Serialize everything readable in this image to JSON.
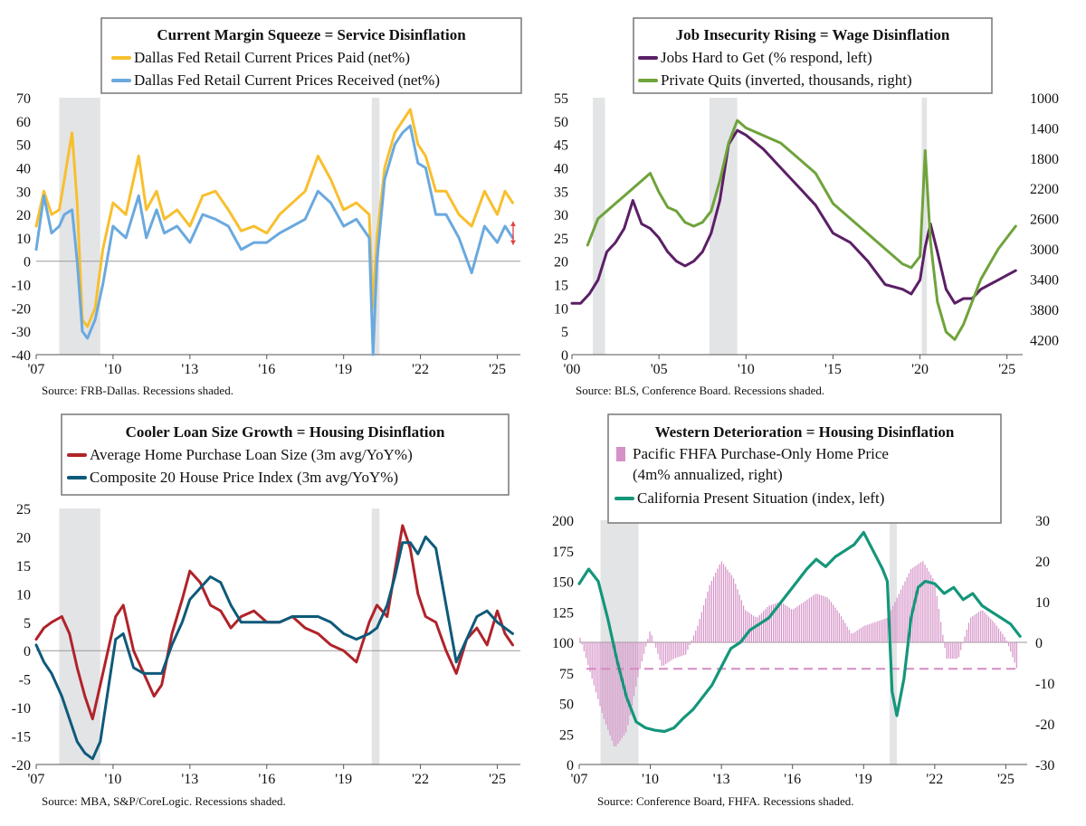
{
  "chart_data": [
    {
      "type": "line",
      "title": "Current Margin Squeeze = Service Disinflation",
      "legend_placement": "top-center",
      "source": "Source: FRB-Dallas. Recessions shaded.",
      "ylim": [
        -40,
        70
      ],
      "y_ticks": [
        "70",
        "60",
        "50",
        "40",
        "30",
        "20",
        "10",
        "0",
        "-10",
        "-20",
        "-30",
        "-40"
      ],
      "x_ticks": [
        "'07",
        "'10",
        "'13",
        "'16",
        "'19",
        "'22",
        "'25"
      ],
      "x_tick_years": [
        2007,
        2010,
        2013,
        2016,
        2019,
        2022,
        2025
      ],
      "xlim": [
        2007.0,
        2025.9
      ],
      "recessions": [
        [
          2007.9,
          2009.5
        ],
        [
          2020.1,
          2020.4
        ]
      ],
      "colors": {
        "paid": "#f8bf2e",
        "received": "#6aa9de",
        "arrow": "#e04040"
      },
      "series": [
        {
          "name": "Dallas Fed Retail Current Prices Paid (net%)",
          "color": "#f8bf2e",
          "x": [
            2007.0,
            2007.3,
            2007.6,
            2007.9,
            2008.1,
            2008.4,
            2008.6,
            2008.8,
            2009.0,
            2009.3,
            2009.6,
            2010.0,
            2010.5,
            2011.0,
            2011.3,
            2011.7,
            2012.0,
            2012.5,
            2013.0,
            2013.5,
            2014.0,
            2014.5,
            2015.0,
            2015.5,
            2016.0,
            2016.5,
            2017.0,
            2017.5,
            2018.0,
            2018.5,
            2019.0,
            2019.5,
            2020.0,
            2020.15,
            2020.3,
            2020.6,
            2021.0,
            2021.3,
            2021.6,
            2021.9,
            2022.2,
            2022.6,
            2023.0,
            2023.5,
            2024.0,
            2024.5,
            2025.0,
            2025.3,
            2025.6
          ],
          "values": [
            15,
            30,
            20,
            22,
            35,
            55,
            25,
            -25,
            -28,
            -20,
            5,
            25,
            20,
            45,
            22,
            30,
            18,
            22,
            15,
            28,
            30,
            22,
            13,
            15,
            12,
            20,
            25,
            30,
            45,
            35,
            22,
            25,
            20,
            -20,
            10,
            40,
            55,
            60,
            65,
            50,
            45,
            30,
            30,
            20,
            15,
            30,
            20,
            30,
            25
          ]
        },
        {
          "name": "Dallas Fed Retail Current Prices Received (net%)",
          "color": "#6aa9de",
          "x": [
            2007.0,
            2007.3,
            2007.6,
            2007.9,
            2008.1,
            2008.4,
            2008.6,
            2008.8,
            2009.0,
            2009.3,
            2009.6,
            2010.0,
            2010.5,
            2011.0,
            2011.3,
            2011.7,
            2012.0,
            2012.5,
            2013.0,
            2013.5,
            2014.0,
            2014.5,
            2015.0,
            2015.5,
            2016.0,
            2016.5,
            2017.0,
            2017.5,
            2018.0,
            2018.5,
            2019.0,
            2019.5,
            2020.0,
            2020.15,
            2020.3,
            2020.6,
            2021.0,
            2021.3,
            2021.6,
            2021.9,
            2022.2,
            2022.6,
            2023.0,
            2023.5,
            2024.0,
            2024.5,
            2025.0,
            2025.3,
            2025.6
          ],
          "values": [
            5,
            28,
            12,
            15,
            20,
            22,
            0,
            -30,
            -33,
            -25,
            -10,
            15,
            10,
            28,
            10,
            22,
            12,
            15,
            8,
            20,
            18,
            15,
            5,
            8,
            8,
            12,
            15,
            18,
            30,
            25,
            15,
            18,
            10,
            -40,
            0,
            35,
            50,
            55,
            58,
            42,
            40,
            20,
            20,
            10,
            -5,
            15,
            8,
            15,
            10
          ]
        }
      ]
    },
    {
      "type": "line",
      "title": "Job Insecurity Rising = Wage Disinflation",
      "legend_placement": "top-center",
      "source": "Source: BLS, Conference Board. Recessions shaded.",
      "ylim": [
        0,
        55
      ],
      "y2lim": [
        4400,
        1000
      ],
      "y_ticks": [
        "55",
        "50",
        "45",
        "40",
        "35",
        "30",
        "25",
        "20",
        "15",
        "10",
        "5",
        "0"
      ],
      "y2_ticks": [
        "1000",
        "1400",
        "1800",
        "2200",
        "2600",
        "3000",
        "3400",
        "3800",
        "4200"
      ],
      "x_ticks": [
        "'00",
        "'05",
        "'10",
        "'15",
        "'20",
        "'25"
      ],
      "x_tick_years": [
        2000,
        2005,
        2010,
        2015,
        2020,
        2025
      ],
      "xlim": [
        2000.0,
        2025.9
      ],
      "recessions": [
        [
          2001.2,
          2001.9
        ],
        [
          2007.9,
          2009.5
        ],
        [
          2020.1,
          2020.4
        ]
      ],
      "colors": {
        "jobs": "#5b1f66",
        "quits": "#6fa33b"
      },
      "series": [
        {
          "name": "Jobs Hard to Get (% respond, left)",
          "color": "#5b1f66",
          "x": [
            2000.0,
            2000.5,
            2001.0,
            2001.5,
            2002.0,
            2002.5,
            2003.0,
            2003.5,
            2004.0,
            2004.5,
            2005.0,
            2005.5,
            2006.0,
            2006.5,
            2007.0,
            2007.5,
            2008.0,
            2008.5,
            2009.0,
            2009.5,
            2010.0,
            2011.0,
            2012.0,
            2013.0,
            2014.0,
            2015.0,
            2016.0,
            2017.0,
            2018.0,
            2019.0,
            2019.5,
            2020.0,
            2020.3,
            2020.6,
            2021.0,
            2021.5,
            2022.0,
            2022.5,
            2023.0,
            2023.5,
            2024.0,
            2024.5,
            2025.0,
            2025.5
          ],
          "values": [
            11,
            11,
            13,
            16,
            22,
            24,
            27,
            33,
            28,
            27,
            25,
            22,
            20,
            19,
            20,
            22,
            26,
            33,
            45,
            48,
            47,
            44,
            40,
            36,
            32,
            26,
            24,
            20,
            15,
            14,
            13,
            16,
            23,
            28,
            22,
            14,
            11,
            12,
            12,
            14,
            15,
            16,
            17,
            18
          ]
        },
        {
          "name": "Private Quits (inverted, thousands, right)",
          "color": "#6fa33b",
          "x": [
            2000.9,
            2001.5,
            2002.0,
            2002.5,
            2003.0,
            2003.5,
            2004.0,
            2004.5,
            2005.0,
            2005.5,
            2006.0,
            2006.5,
            2007.0,
            2007.5,
            2008.0,
            2008.5,
            2009.0,
            2009.5,
            2010.0,
            2011.0,
            2012.0,
            2013.0,
            2014.0,
            2015.0,
            2016.0,
            2017.0,
            2018.0,
            2019.0,
            2019.5,
            2020.0,
            2020.3,
            2020.6,
            2021.0,
            2021.5,
            2022.0,
            2022.5,
            2023.0,
            2023.5,
            2024.0,
            2024.5,
            2025.0,
            2025.5
          ],
          "values": [
            2950,
            2600,
            2500,
            2400,
            2300,
            2200,
            2100,
            2000,
            2250,
            2450,
            2500,
            2650,
            2700,
            2650,
            2500,
            2100,
            1600,
            1300,
            1400,
            1500,
            1600,
            1800,
            2000,
            2400,
            2600,
            2800,
            3000,
            3200,
            3250,
            3100,
            1700,
            2900,
            3700,
            4100,
            4200,
            4000,
            3700,
            3400,
            3200,
            3000,
            2850,
            2700
          ]
        }
      ]
    },
    {
      "type": "line",
      "title": "Cooler Loan Size Growth = Housing Disinflation",
      "legend_placement": "top-center",
      "source": "Source: MBA, S&P/CoreLogic. Recessions shaded.",
      "ylim": [
        -20,
        25
      ],
      "y_ticks": [
        "25",
        "20",
        "15",
        "10",
        "5",
        "0",
        "-5",
        "-10",
        "-15",
        "-20"
      ],
      "x_ticks": [
        "'07",
        "'10",
        "'13",
        "'16",
        "'19",
        "'22",
        "'25"
      ],
      "x_tick_years": [
        2007,
        2010,
        2013,
        2016,
        2019,
        2022,
        2025
      ],
      "xlim": [
        2007.0,
        2025.9
      ],
      "recessions": [
        [
          2007.9,
          2009.5
        ],
        [
          2020.1,
          2020.4
        ]
      ],
      "colors": {
        "loan": "#b0232a",
        "cs20": "#0e5a7a"
      },
      "series": [
        {
          "name": "Average Home Purchase Loan Size (3m avg/YoY%)",
          "color": "#b0232a",
          "x": [
            2007.0,
            2007.3,
            2007.6,
            2008.0,
            2008.3,
            2008.6,
            2008.9,
            2009.2,
            2009.5,
            2009.8,
            2010.1,
            2010.4,
            2010.8,
            2011.2,
            2011.6,
            2011.9,
            2012.3,
            2012.7,
            2013.0,
            2013.4,
            2013.8,
            2014.2,
            2014.6,
            2015.0,
            2015.5,
            2016.0,
            2016.5,
            2017.0,
            2017.5,
            2018.0,
            2018.5,
            2019.0,
            2019.5,
            2020.0,
            2020.3,
            2020.7,
            2021.0,
            2021.3,
            2021.6,
            2021.9,
            2022.2,
            2022.6,
            2023.0,
            2023.4,
            2023.8,
            2024.2,
            2024.6,
            2025.0,
            2025.3,
            2025.6
          ],
          "values": [
            2,
            4,
            5,
            6,
            3,
            -3,
            -8,
            -12,
            -6,
            0,
            6,
            8,
            0,
            -4,
            -8,
            -6,
            3,
            9,
            14,
            12,
            8,
            7,
            4,
            6,
            7,
            5,
            5,
            6,
            4,
            3,
            1,
            0,
            -2,
            5,
            8,
            6,
            14,
            22,
            18,
            10,
            6,
            5,
            0,
            -4,
            2,
            4,
            1,
            7,
            3,
            1
          ]
        },
        {
          "name": "Composite 20 House Price Index (3m avg/YoY%)",
          "color": "#0e5a7a",
          "x": [
            2007.0,
            2007.3,
            2007.6,
            2008.0,
            2008.3,
            2008.6,
            2008.9,
            2009.2,
            2009.5,
            2009.8,
            2010.1,
            2010.4,
            2010.8,
            2011.2,
            2011.6,
            2011.9,
            2012.3,
            2012.7,
            2013.0,
            2013.4,
            2013.8,
            2014.2,
            2014.6,
            2015.0,
            2015.5,
            2016.0,
            2016.5,
            2017.0,
            2017.5,
            2018.0,
            2018.5,
            2019.0,
            2019.5,
            2020.0,
            2020.3,
            2020.7,
            2021.0,
            2021.3,
            2021.6,
            2021.9,
            2022.2,
            2022.6,
            2023.0,
            2023.4,
            2023.8,
            2024.2,
            2024.6,
            2025.0,
            2025.3,
            2025.6
          ],
          "values": [
            1,
            -2,
            -4,
            -8,
            -12,
            -16,
            -18,
            -19,
            -16,
            -7,
            2,
            3,
            -3,
            -4,
            -4,
            -4,
            1,
            5,
            9,
            11,
            13,
            12,
            8,
            5,
            5,
            5,
            5,
            6,
            6,
            6,
            5,
            3,
            2,
            3,
            4,
            8,
            13,
            19,
            19,
            17,
            20,
            18,
            8,
            -2,
            2,
            6,
            7,
            5,
            4,
            3
          ]
        }
      ]
    },
    {
      "type": "bar",
      "title": "Western Deterioration = Housing Disinflation",
      "legend_placement": "top-center",
      "source": "Source: Conference Board, FHFA. Recessions shaded.",
      "ylim": [
        0,
        200
      ],
      "y2lim": [
        -30,
        30
      ],
      "y_ticks": [
        "200",
        "175",
        "150",
        "125",
        "100",
        "75",
        "50",
        "25",
        "0"
      ],
      "y2_ticks": [
        "30",
        "20",
        "10",
        "0",
        "-10",
        "-20",
        "-30"
      ],
      "x_ticks": [
        "'07",
        "'10",
        "'13",
        "'16",
        "'19",
        "'22",
        "'25"
      ],
      "x_tick_years": [
        2007,
        2010,
        2013,
        2016,
        2019,
        2022,
        2025
      ],
      "xlim": [
        2007.0,
        2025.9
      ],
      "recessions": [
        [
          2007.9,
          2009.5
        ],
        [
          2020.1,
          2020.4
        ]
      ],
      "colors": {
        "bars": "#d591c7",
        "line": "#14967a",
        "dashed": "#d58ac2"
      },
      "reference_line_right": -6.5,
      "series": [
        {
          "name": "Pacific FHFA Purchase-Only Home Price",
          "legend_line2": "(4m% annualized, right)",
          "color": "#d591c7",
          "axis": "right",
          "x": [
            2007.0,
            2007.5,
            2008.0,
            2008.5,
            2009.0,
            2009.5,
            2010.0,
            2010.5,
            2011.0,
            2011.5,
            2012.0,
            2012.5,
            2013.0,
            2013.5,
            2014.0,
            2014.5,
            2015.0,
            2015.5,
            2016.0,
            2016.5,
            2017.0,
            2017.5,
            2018.0,
            2018.5,
            2019.0,
            2019.5,
            2020.0,
            2020.5,
            2021.0,
            2021.5,
            2022.0,
            2022.5,
            2023.0,
            2023.5,
            2024.0,
            2024.5,
            2025.0,
            2025.5
          ],
          "values": [
            2,
            -8,
            -18,
            -26,
            -22,
            -8,
            3,
            -6,
            -4,
            -3,
            4,
            14,
            20,
            16,
            8,
            6,
            9,
            10,
            8,
            10,
            12,
            11,
            7,
            2,
            4,
            5,
            6,
            12,
            18,
            20,
            15,
            -4,
            -4,
            6,
            8,
            5,
            1,
            -7
          ]
        },
        {
          "name": "California Present Situation (index, left)",
          "color": "#14967a",
          "axis": "left",
          "x": [
            2007.0,
            2007.4,
            2007.8,
            2008.2,
            2008.6,
            2009.0,
            2009.4,
            2009.8,
            2010.2,
            2010.6,
            2011.0,
            2011.4,
            2011.8,
            2012.2,
            2012.6,
            2013.0,
            2013.4,
            2013.8,
            2014.2,
            2014.6,
            2015.0,
            2015.4,
            2015.8,
            2016.2,
            2016.6,
            2017.0,
            2017.4,
            2017.8,
            2018.2,
            2018.6,
            2019.0,
            2019.4,
            2019.8,
            2020.0,
            2020.2,
            2020.4,
            2020.7,
            2021.0,
            2021.3,
            2021.6,
            2022.0,
            2022.4,
            2022.8,
            2023.2,
            2023.6,
            2024.0,
            2024.4,
            2024.8,
            2025.2,
            2025.6
          ],
          "values": [
            148,
            160,
            150,
            120,
            85,
            55,
            35,
            30,
            28,
            27,
            30,
            38,
            45,
            55,
            65,
            80,
            95,
            100,
            110,
            115,
            120,
            130,
            140,
            150,
            160,
            168,
            162,
            170,
            175,
            180,
            190,
            175,
            160,
            150,
            60,
            40,
            70,
            120,
            145,
            150,
            148,
            140,
            145,
            135,
            140,
            130,
            125,
            120,
            115,
            105
          ]
        }
      ]
    }
  ]
}
